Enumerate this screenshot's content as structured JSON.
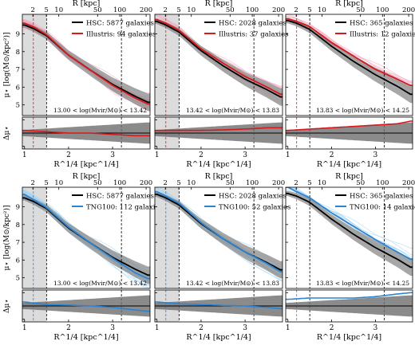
{
  "figure": {
    "panel_rows": [
      {
        "sim": "Illustris",
        "color": "#d7191c",
        "thin_color": "#f4a6c0"
      },
      {
        "sim": "TNG100",
        "color": "#2b83d3",
        "thin_color": "#9fd3f2"
      }
    ],
    "top_axis_label": "R [kpc]",
    "top_ticks": [
      "2",
      "5",
      "10",
      "50",
      "100",
      "200"
    ],
    "bottom_axis_label": "R^1/4 [kpc^1/4]",
    "bottom_ticks": [
      "1",
      "2",
      "3"
    ],
    "main_ylabel": "μ⋆ [log(M⊙/kpc²)]",
    "main_yticks": [
      "5",
      "6",
      "7",
      "8",
      "9"
    ],
    "resid_ylabel": "Δμ⋆",
    "resid_yticks": [
      "-0.5",
      "0.0",
      "0.5"
    ]
  },
  "chart_data": [
    {
      "type": "line",
      "title": "13.00 < log(Mvir/M⊙) < 13.42",
      "xlabel": "R^1/4 [kpc^1/4]",
      "ylabel": "μ⋆ [log(M⊙/kpc²)]",
      "xlim": [
        0.95,
        3.85
      ],
      "ylim": [
        4.4,
        10.1
      ],
      "resid_ylim": [
        -0.6,
        0.6
      ],
      "shaded_region": [
        0.95,
        1.5
      ],
      "vlines": [
        {
          "x": 1.2,
          "color": "#d7191c"
        },
        {
          "x": 1.5,
          "color": "#000000"
        },
        {
          "x": 3.2,
          "color": "#000000"
        }
      ],
      "legend": [
        "HSC: 5877 galaxies",
        "Illustris: 94 galaxies"
      ],
      "series": [
        {
          "name": "HSC",
          "color": "#000000",
          "x": [
            1.0,
            1.2,
            1.5,
            2.0,
            2.5,
            3.0,
            3.5,
            3.8
          ],
          "values": [
            9.5,
            9.3,
            8.9,
            7.8,
            6.95,
            6.15,
            5.5,
            5.15
          ]
        },
        {
          "name": "Illustris",
          "color": "#d7191c",
          "x": [
            1.0,
            1.2,
            1.5,
            2.0,
            2.5,
            3.0,
            3.5,
            3.8
          ],
          "values": [
            9.6,
            9.4,
            8.95,
            7.8,
            6.95,
            6.1,
            5.4,
            5.05
          ]
        }
      ],
      "residual": {
        "x": [
          1.0,
          1.5,
          2.0,
          2.5,
          3.0,
          3.5,
          3.8
        ],
        "values": [
          0.1,
          0.05,
          0.0,
          0.0,
          -0.05,
          -0.1,
          -0.1
        ]
      }
    },
    {
      "type": "line",
      "title": "13.42 < log(Mvir/M⊙) < 13.83",
      "xlabel": "R^1/4 [kpc^1/4]",
      "ylabel": "",
      "xlim": [
        0.95,
        3.85
      ],
      "ylim": [
        4.4,
        10.1
      ],
      "resid_ylim": [
        -0.6,
        0.6
      ],
      "shaded_region": [
        0.95,
        1.5
      ],
      "vlines": [
        {
          "x": 1.2,
          "color": "#d7191c"
        },
        {
          "x": 1.5,
          "color": "#000000"
        },
        {
          "x": 3.2,
          "color": "#000000"
        }
      ],
      "legend": [
        "HSC: 2028 galaxies",
        "Illustris: 37 galaxies"
      ],
      "series": [
        {
          "name": "HSC",
          "color": "#000000",
          "x": [
            1.0,
            1.2,
            1.5,
            2.0,
            2.5,
            3.0,
            3.5,
            3.8
          ],
          "values": [
            9.7,
            9.5,
            9.1,
            8.05,
            7.2,
            6.45,
            5.85,
            5.45
          ]
        },
        {
          "name": "Illustris",
          "color": "#d7191c",
          "x": [
            1.0,
            1.2,
            1.5,
            2.0,
            2.5,
            3.0,
            3.5,
            3.8
          ],
          "values": [
            9.8,
            9.6,
            9.2,
            8.15,
            7.35,
            6.6,
            6.0,
            5.6
          ]
        }
      ],
      "residual": {
        "x": [
          1.0,
          1.5,
          2.0,
          2.5,
          3.0,
          3.5,
          3.8
        ],
        "values": [
          0.1,
          0.1,
          0.1,
          0.12,
          0.15,
          0.2,
          0.2
        ]
      }
    },
    {
      "type": "line",
      "title": "13.83 < log(Mvir/M⊙) < 14.25",
      "xlabel": "R^1/4 [kpc^1/4]",
      "ylabel": "",
      "xlim": [
        0.95,
        3.85
      ],
      "ylim": [
        4.4,
        10.1
      ],
      "resid_ylim": [
        -0.6,
        0.6
      ],
      "shaded_region": [],
      "vlines": [
        {
          "x": 1.2,
          "color": "#d7191c"
        },
        {
          "x": 1.5,
          "color": "#000000"
        },
        {
          "x": 3.2,
          "color": "#000000"
        }
      ],
      "legend": [
        "HSC: 365 galaxies",
        "Illustris: 12 galaxies"
      ],
      "series": [
        {
          "name": "HSC",
          "color": "#000000",
          "x": [
            1.0,
            1.2,
            1.5,
            2.0,
            2.5,
            3.0,
            3.5,
            3.8
          ],
          "values": [
            9.75,
            9.6,
            9.25,
            8.3,
            7.45,
            6.7,
            6.05,
            5.6
          ]
        },
        {
          "name": "Illustris",
          "color": "#d7191c",
          "x": [
            1.0,
            1.2,
            1.5,
            2.0,
            2.5,
            3.0,
            3.5,
            3.8
          ],
          "values": [
            9.85,
            9.7,
            9.4,
            8.5,
            7.75,
            7.0,
            6.45,
            6.1
          ]
        }
      ],
      "residual": {
        "x": [
          1.0,
          1.5,
          2.0,
          2.5,
          3.0,
          3.5,
          3.8
        ],
        "values": [
          0.1,
          0.15,
          0.2,
          0.25,
          0.3,
          0.35,
          0.45
        ]
      }
    },
    {
      "type": "line",
      "title": "13.00 < log(Mvir/M⊙) < 13.42",
      "xlabel": "R^1/4 [kpc^1/4]",
      "ylabel": "μ⋆ [log(M⊙/kpc²)]",
      "xlim": [
        0.95,
        3.85
      ],
      "ylim": [
        4.4,
        10.1
      ],
      "resid_ylim": [
        -0.6,
        0.6
      ],
      "shaded_region": [
        0.95,
        1.5
      ],
      "vlines": [
        {
          "x": 1.2,
          "color": "#2b83d3"
        },
        {
          "x": 1.5,
          "color": "#000000"
        },
        {
          "x": 3.2,
          "color": "#000000"
        }
      ],
      "legend": [
        "HSC: 5877 galaxies",
        "TNG100: 112 galaxies"
      ],
      "series": [
        {
          "name": "HSC",
          "color": "#000000",
          "x": [
            1.0,
            1.2,
            1.5,
            2.0,
            2.5,
            3.0,
            3.5,
            3.8
          ],
          "values": [
            9.5,
            9.3,
            8.9,
            7.8,
            6.95,
            6.15,
            5.5,
            5.15
          ]
        },
        {
          "name": "TNG100",
          "color": "#2b83d3",
          "x": [
            1.0,
            1.2,
            1.5,
            2.0,
            2.5,
            3.0,
            3.5,
            3.8
          ],
          "values": [
            9.7,
            9.4,
            8.95,
            7.85,
            6.95,
            6.1,
            5.3,
            4.95
          ]
        }
      ],
      "residual": {
        "x": [
          1.0,
          1.5,
          2.0,
          2.5,
          3.0,
          3.5,
          3.8
        ],
        "values": [
          0.15,
          0.05,
          0.03,
          0.0,
          -0.05,
          -0.15,
          -0.2
        ]
      }
    },
    {
      "type": "line",
      "title": "13.42 < log(Mvir/M⊙) < 13.83",
      "xlabel": "R^1/4 [kpc^1/4]",
      "ylabel": "",
      "xlim": [
        0.95,
        3.85
      ],
      "ylim": [
        4.4,
        10.1
      ],
      "resid_ylim": [
        -0.6,
        0.6
      ],
      "shaded_region": [
        0.95,
        1.5
      ],
      "vlines": [
        {
          "x": 1.2,
          "color": "#2b83d3"
        },
        {
          "x": 1.5,
          "color": "#000000"
        },
        {
          "x": 3.2,
          "color": "#000000"
        }
      ],
      "legend": [
        "HSC: 2028 galaxies",
        "TNG100: 52 galaxies"
      ],
      "series": [
        {
          "name": "HSC",
          "color": "#000000",
          "x": [
            1.0,
            1.2,
            1.5,
            2.0,
            2.5,
            3.0,
            3.5,
            3.8
          ],
          "values": [
            9.7,
            9.5,
            9.1,
            8.05,
            7.2,
            6.45,
            5.85,
            5.45
          ]
        },
        {
          "name": "TNG100",
          "color": "#2b83d3",
          "x": [
            1.0,
            1.2,
            1.5,
            2.0,
            2.5,
            3.0,
            3.5,
            3.8
          ],
          "values": [
            9.85,
            9.6,
            9.2,
            8.1,
            7.2,
            6.45,
            5.8,
            5.35
          ]
        }
      ],
      "residual": {
        "x": [
          1.0,
          1.5,
          2.0,
          2.5,
          3.0,
          3.5,
          3.8
        ],
        "values": [
          0.15,
          0.08,
          0.05,
          0.02,
          0.0,
          -0.05,
          -0.1
        ]
      }
    },
    {
      "type": "line",
      "title": "13.83 < log(Mvir/M⊙) < 14.25",
      "xlabel": "R^1/4 [kpc^1/4]",
      "ylabel": "",
      "xlim": [
        0.95,
        3.85
      ],
      "ylim": [
        4.4,
        10.1
      ],
      "resid_ylim": [
        -0.6,
        0.6
      ],
      "shaded_region": [],
      "vlines": [
        {
          "x": 1.2,
          "color": "#2b83d3"
        },
        {
          "x": 1.5,
          "color": "#000000"
        },
        {
          "x": 3.2,
          "color": "#000000"
        }
      ],
      "legend": [
        "HSC: 365 galaxies",
        "TNG100: 14 galaxies"
      ],
      "series": [
        {
          "name": "HSC",
          "color": "#000000",
          "x": [
            1.0,
            1.2,
            1.5,
            2.0,
            2.5,
            3.0,
            3.5,
            3.8
          ],
          "values": [
            9.75,
            9.6,
            9.25,
            8.3,
            7.45,
            6.7,
            6.05,
            5.6
          ]
        },
        {
          "name": "TNG100",
          "color": "#2b83d3",
          "x": [
            1.0,
            1.2,
            1.5,
            2.0,
            2.5,
            3.0,
            3.5,
            3.8
          ],
          "values": [
            10.1,
            9.85,
            9.5,
            8.65,
            7.9,
            7.15,
            6.45,
            6.05
          ]
        }
      ],
      "residual": {
        "x": [
          1.0,
          1.5,
          2.0,
          2.5,
          3.0,
          3.5,
          3.8
        ],
        "values": [
          0.25,
          0.3,
          0.3,
          0.3,
          0.35,
          0.45,
          0.5
        ]
      }
    }
  ]
}
